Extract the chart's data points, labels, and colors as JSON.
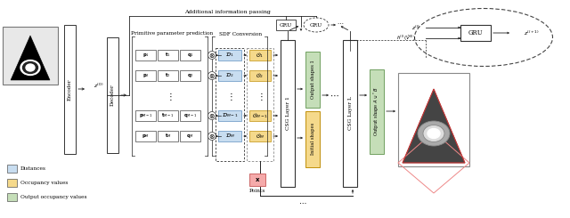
{
  "bg_color": "#ffffff",
  "legend_items": [
    {
      "label": "Distances",
      "color": "#c8ddf0"
    },
    {
      "label": "Occupancy values",
      "color": "#f5d98b"
    },
    {
      "label": "Output occupancy values",
      "color": "#c5deb8"
    }
  ]
}
